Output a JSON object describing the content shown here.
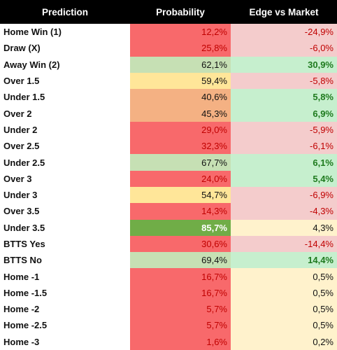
{
  "table": {
    "header": [
      "Prediction",
      "Probability",
      "Edge vs Market"
    ],
    "rows": [
      [
        "Home Win (1)",
        "12,2%",
        "-24,9%"
      ],
      [
        "Draw (X)",
        "25,8%",
        "-6,0%"
      ],
      [
        "Away Win (2)",
        "62,1%",
        "30,9%"
      ],
      [
        "Over 1.5",
        "59,4%",
        "-5,8%"
      ],
      [
        "Under 1.5",
        "40,6%",
        "5,8%"
      ],
      [
        "Over 2",
        "45,3%",
        "6,9%"
      ],
      [
        "Under 2",
        "29,0%",
        "-5,9%"
      ],
      [
        "Over 2.5",
        "32,3%",
        "-6,1%"
      ],
      [
        "Under 2.5",
        "67,7%",
        "6,1%"
      ],
      [
        "Over 3",
        "24,0%",
        "5,4%"
      ],
      [
        "Under 3",
        "54,7%",
        "-6,9%"
      ],
      [
        "Over 3.5",
        "14,3%",
        "-4,3%"
      ],
      [
        "Under 3.5",
        "85,7%",
        "4,3%"
      ],
      [
        "BTTS Yes",
        "30,6%",
        "-14,4%"
      ],
      [
        "BTTS No",
        "69,4%",
        "14,4%"
      ],
      [
        "Home -1",
        "16,7%",
        "0,5%"
      ],
      [
        "Home -1.5",
        "16,7%",
        "0,5%"
      ],
      [
        "Home -2",
        "5,7%",
        "0,5%"
      ],
      [
        "Home -2.5",
        "5,7%",
        "0,5%"
      ],
      [
        "Home -3",
        "1,6%",
        "0,2%"
      ]
    ]
  }
}
